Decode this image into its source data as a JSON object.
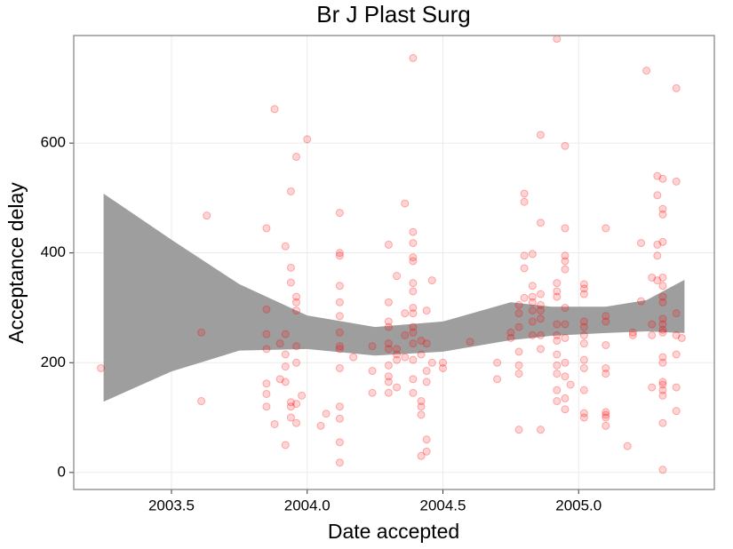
{
  "chart_data": {
    "type": "scatter",
    "title": "Br J Plast Surg",
    "xlabel": "Date accepted",
    "ylabel": "Acceptance delay",
    "xlim": [
      2003.14,
      2005.5
    ],
    "ylim": [
      -31,
      796
    ],
    "xticks": [
      2003.5,
      {
        "value": 2004,
        "label": "2004.0"
      },
      2004.5,
      {
        "value": 2005,
        "label": "2005.0"
      }
    ],
    "yticks": [
      0,
      200,
      400,
      600
    ],
    "grid": true,
    "color": "#ff0000",
    "x": [
      2003.24,
      2003.61,
      2003.61,
      2003.63,
      2003.85,
      2003.85,
      2003.85,
      2003.85,
      2003.85,
      2003.85,
      2003.85,
      2003.88,
      2003.88,
      2003.9,
      2003.9,
      2003.92,
      2003.92,
      2003.92,
      2003.92,
      2003.92,
      2003.92,
      2003.94,
      2003.94,
      2003.94,
      2003.94,
      2003.94,
      2003.94,
      2003.96,
      2003.96,
      2003.96,
      2003.96,
      2003.96,
      2003.96,
      2003.96,
      2003.96,
      2003.98,
      2004.0,
      2004.05,
      2004.07,
      2004.12,
      2004.12,
      2004.12,
      2004.12,
      2004.12,
      2004.12,
      2004.12,
      2004.12,
      2004.12,
      2004.12,
      2004.12,
      2004.12,
      2004.12,
      2004.12,
      2004.17,
      2004.24,
      2004.24,
      2004.24,
      2004.3,
      2004.3,
      2004.3,
      2004.3,
      2004.3,
      2004.3,
      2004.3,
      2004.3,
      2004.3,
      2004.3,
      2004.33,
      2004.33,
      2004.33,
      2004.33,
      2004.33,
      2004.36,
      2004.36,
      2004.36,
      2004.36,
      2004.39,
      2004.39,
      2004.39,
      2004.39,
      2004.39,
      2004.39,
      2004.39,
      2004.39,
      2004.39,
      2004.39,
      2004.39,
      2004.39,
      2004.39,
      2004.39,
      2004.39,
      2004.42,
      2004.42,
      2004.42,
      2004.42,
      2004.42,
      2004.42,
      2004.44,
      2004.44,
      2004.44,
      2004.44,
      2004.44,
      2004.44,
      2004.46,
      2004.46,
      2004.5,
      2004.5,
      2004.6,
      2004.7,
      2004.7,
      2004.75,
      2004.75,
      2004.78,
      2004.78,
      2004.78,
      2004.78,
      2004.78,
      2004.78,
      2004.78,
      2004.8,
      2004.8,
      2004.8,
      2004.8,
      2004.8,
      2004.83,
      2004.83,
      2004.83,
      2004.83,
      2004.83,
      2004.83,
      2004.83,
      2004.86,
      2004.86,
      2004.86,
      2004.86,
      2004.86,
      2004.86,
      2004.86,
      2004.86,
      2004.86,
      2004.92,
      2004.92,
      2004.92,
      2004.92,
      2004.92,
      2004.92,
      2004.92,
      2004.92,
      2004.92,
      2004.92,
      2004.92,
      2004.92,
      2004.95,
      2004.95,
      2004.95,
      2004.95,
      2004.95,
      2004.95,
      2004.95,
      2004.95,
      2004.95,
      2004.95,
      2004.95,
      2004.95,
      2004.97,
      2005.02,
      2005.02,
      2005.02,
      2005.02,
      2005.02,
      2005.02,
      2005.02,
      2005.02,
      2005.02,
      2005.02,
      2005.02,
      2005.02,
      2005.1,
      2005.1,
      2005.1,
      2005.1,
      2005.1,
      2005.1,
      2005.1,
      2005.1,
      2005.1,
      2005.1,
      2005.18,
      2005.2,
      2005.2,
      2005.23,
      2005.23,
      2005.25,
      2005.27,
      2005.27,
      2005.27,
      2005.27,
      2005.29,
      2005.29,
      2005.29,
      2005.29,
      2005.29,
      2005.31,
      2005.31,
      2005.31,
      2005.31,
      2005.31,
      2005.31,
      2005.31,
      2005.31,
      2005.31,
      2005.31,
      2005.31,
      2005.31,
      2005.31,
      2005.31,
      2005.31,
      2005.31,
      2005.31,
      2005.31,
      2005.31,
      2005.31,
      2005.36,
      2005.36,
      2005.36,
      2005.36,
      2005.36,
      2005.36,
      2005.36,
      2005.38
    ],
    "values": [
      190,
      255,
      130,
      468,
      445,
      297,
      252,
      225,
      162,
      143,
      120,
      662,
      88,
      235,
      170,
      50,
      165,
      193,
      215,
      252,
      412,
      512,
      373,
      346,
      128,
      100,
      120,
      575,
      320,
      310,
      295,
      230,
      200,
      125,
      90,
      140,
      607,
      85,
      107,
      473,
      400,
      395,
      340,
      310,
      285,
      255,
      230,
      225,
      190,
      120,
      98,
      55,
      18,
      210,
      230,
      185,
      145,
      415,
      310,
      275,
      265,
      235,
      225,
      195,
      175,
      165,
      145,
      358,
      225,
      215,
      205,
      155,
      490,
      290,
      250,
      210,
      755,
      438,
      418,
      392,
      385,
      345,
      330,
      300,
      290,
      265,
      255,
      235,
      205,
      170,
      145,
      240,
      215,
      130,
      120,
      105,
      30,
      295,
      235,
      185,
      165,
      60,
      38,
      350,
      200,
      200,
      190,
      238,
      200,
      170,
      255,
      245,
      305,
      290,
      265,
      220,
      195,
      180,
      78,
      508,
      493,
      395,
      372,
      318,
      398,
      340,
      320,
      310,
      295,
      275,
      250,
      615,
      455,
      325,
      305,
      295,
      280,
      250,
      225,
      78,
      790,
      345,
      330,
      320,
      270,
      250,
      240,
      215,
      195,
      180,
      150,
      130,
      595,
      445,
      395,
      385,
      370,
      300,
      270,
      245,
      200,
      175,
      135,
      115,
      160,
      343,
      335,
      325,
      275,
      265,
      250,
      235,
      205,
      190,
      150,
      108,
      100,
      445,
      285,
      275,
      232,
      190,
      180,
      110,
      105,
      100,
      85,
      48,
      255,
      250,
      418,
      312,
      732,
      355,
      270,
      250,
      155,
      540,
      505,
      415,
      395,
      350,
      535,
      480,
      470,
      420,
      355,
      340,
      320,
      310,
      280,
      270,
      260,
      255,
      210,
      200,
      165,
      160,
      150,
      140,
      90,
      5,
      700,
      530,
      290,
      250,
      215,
      155,
      112,
      245
    ],
    "band": {
      "color": "#999999",
      "x": [
        2003.25,
        2003.5,
        2003.75,
        2004.0,
        2004.25,
        2004.5,
        2004.75,
        2004.9,
        2005.1,
        2005.25,
        2005.39
      ],
      "upper": [
        508,
        424,
        343,
        286,
        265,
        275,
        310,
        302,
        302,
        314,
        351
      ],
      "lower": [
        129,
        184,
        222,
        225,
        213,
        220,
        241,
        249,
        254,
        257,
        254
      ]
    }
  }
}
